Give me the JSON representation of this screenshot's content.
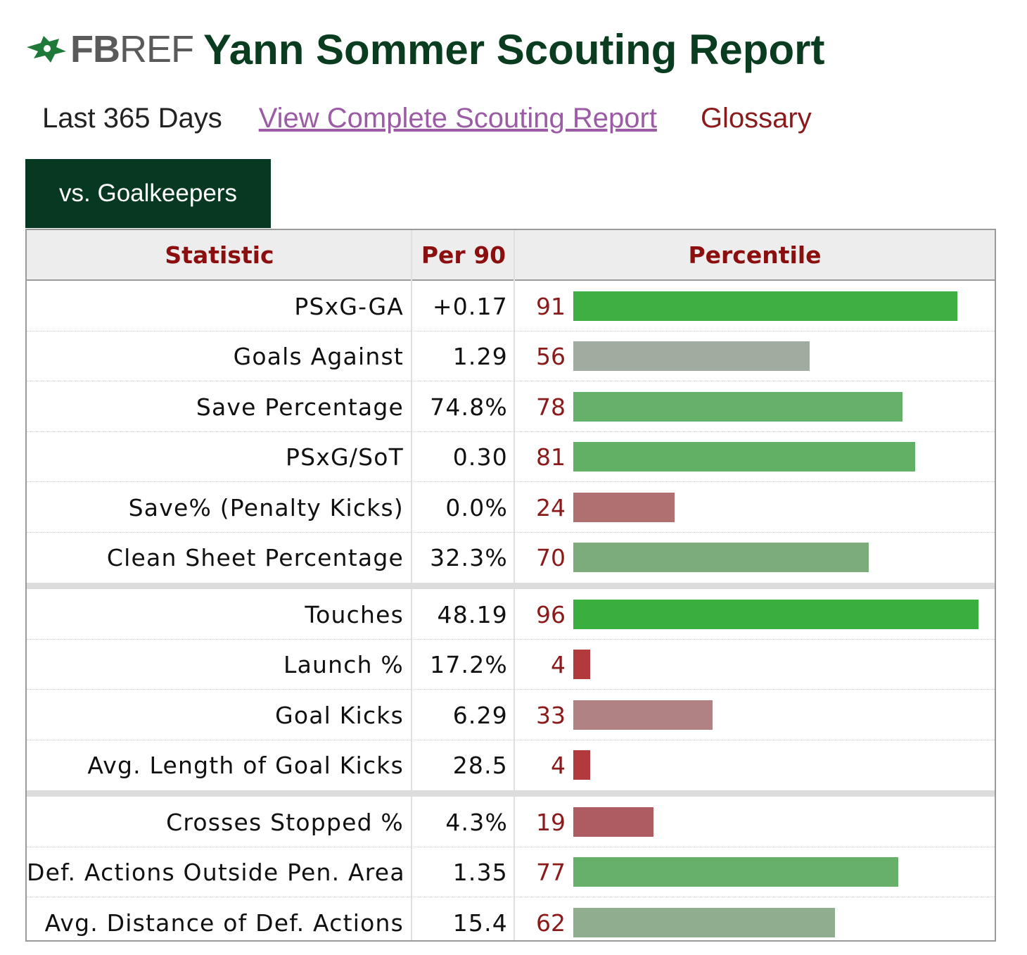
{
  "header": {
    "logo_fb": "FB",
    "logo_ref": "REF",
    "title": "Yann Sommer Scouting Report"
  },
  "subnav": {
    "period": "Last 365 Days",
    "link": "View Complete Scouting Report",
    "glossary": "Glossary"
  },
  "tab": {
    "label": "vs. Goalkeepers"
  },
  "table": {
    "columns": [
      "Statistic",
      "Per 90",
      "Percentile"
    ]
  },
  "colors": {
    "title": "#0a3d20",
    "tab_bg": "#063822",
    "header_text": "#8b0f0f",
    "percentile_text": "#8b1b1b"
  },
  "chart_data": {
    "type": "bar",
    "title": "Yann Sommer Scouting Report",
    "xlabel": "",
    "ylabel": "Percentile",
    "ylim": [
      0,
      100
    ],
    "groups": [
      [
        {
          "stat": "PSxG-GA",
          "per90": "+0.17",
          "percentile": 91,
          "color": "#3fae43"
        },
        {
          "stat": "Goals Against",
          "per90": "1.29",
          "percentile": 56,
          "color": "#a1aca0"
        },
        {
          "stat": "Save Percentage",
          "per90": "74.8%",
          "percentile": 78,
          "color": "#66b16a"
        },
        {
          "stat": "PSxG/SoT",
          "per90": "0.30",
          "percentile": 81,
          "color": "#62b066"
        },
        {
          "stat": "Save% (Penalty Kicks)",
          "per90": "0.0%",
          "percentile": 24,
          "color": "#b06f70"
        },
        {
          "stat": "Clean Sheet Percentage",
          "per90": "32.3%",
          "percentile": 70,
          "color": "#7cac7c"
        }
      ],
      [
        {
          "stat": "Touches",
          "per90": "48.19",
          "percentile": 96,
          "color": "#3aae3f"
        },
        {
          "stat": "Launch %",
          "per90": "17.2%",
          "percentile": 4,
          "color": "#b23a3d"
        },
        {
          "stat": "Goal Kicks",
          "per90": "6.29",
          "percentile": 33,
          "color": "#b08283"
        },
        {
          "stat": "Avg. Length of Goal Kicks",
          "per90": "28.5",
          "percentile": 4,
          "color": "#b23a3d"
        }
      ],
      [
        {
          "stat": "Crosses Stopped %",
          "per90": "4.3%",
          "percentile": 19,
          "color": "#ad5d61"
        },
        {
          "stat": "Def. Actions Outside Pen. Area",
          "per90": "1.35",
          "percentile": 77,
          "color": "#66b06a"
        },
        {
          "stat": "Avg. Distance of Def. Actions",
          "per90": "15.4",
          "percentile": 62,
          "color": "#91ad90"
        }
      ]
    ]
  }
}
